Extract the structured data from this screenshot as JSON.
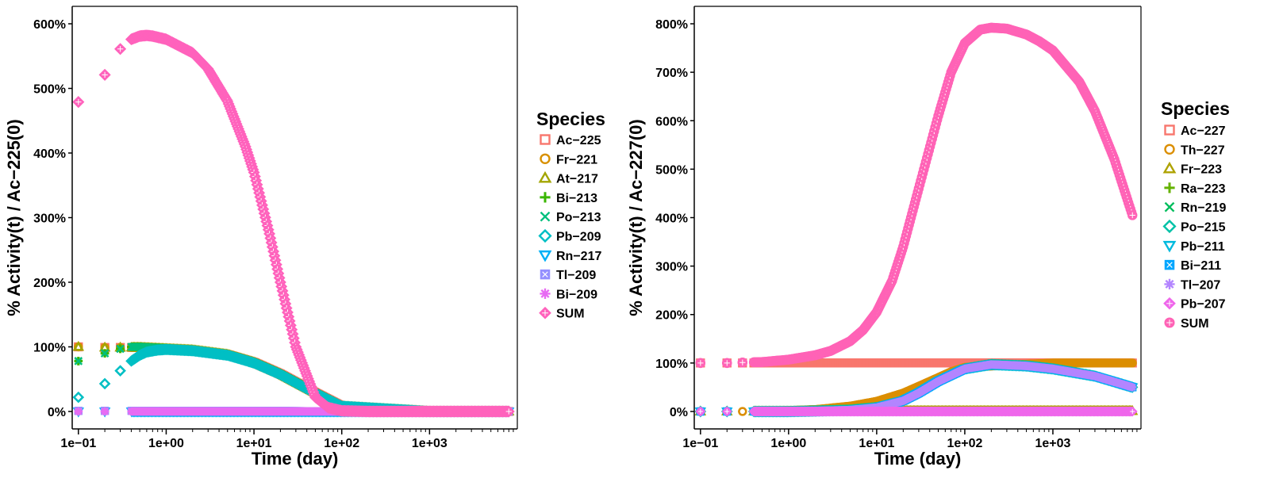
{
  "chart_data": [
    {
      "type": "scatter",
      "xlabel": "Time (day)",
      "ylabel": "% Activity(t) / Ac−225(0)",
      "xscale": "log10",
      "xlim": [
        0.1,
        8000
      ],
      "ylim": [
        0,
        600
      ],
      "x_ticks": [
        "1e−01",
        "1e+00",
        "1e+01",
        "1e+02",
        "1e+03"
      ],
      "y_ticks": [
        "0%",
        "100%",
        "200%",
        "300%",
        "400%",
        "500%",
        "600%"
      ],
      "legend_title": "Species",
      "legend_position": "right",
      "series": [
        {
          "name": "Ac−225",
          "color": "#F8766D",
          "shape": "square",
          "x": [
            0.1,
            0.2,
            0.3,
            0.5,
            1,
            2,
            5,
            10,
            20,
            50,
            100,
            1000,
            8000
          ],
          "values": [
            100,
            99,
            99,
            99,
            97,
            95,
            88,
            76,
            58,
            29,
            8,
            0,
            0
          ]
        },
        {
          "name": "Fr−221",
          "color": "#D89000",
          "shape": "circle",
          "x": [
            0.1,
            0.2,
            0.3,
            0.5,
            1,
            2,
            5,
            10,
            20,
            50,
            100,
            1000,
            8000
          ],
          "values": [
            100,
            99,
            99,
            99,
            97,
            95,
            88,
            76,
            58,
            29,
            8,
            0,
            0
          ]
        },
        {
          "name": "At−217",
          "color": "#A3A500",
          "shape": "triangle",
          "x": [
            0.1,
            0.2,
            0.3,
            0.5,
            1,
            2,
            5,
            10,
            20,
            50,
            100,
            1000,
            8000
          ],
          "values": [
            100,
            99,
            99,
            99,
            97,
            95,
            88,
            76,
            58,
            29,
            8,
            0,
            0
          ]
        },
        {
          "name": "Bi−213",
          "color": "#39B600",
          "shape": "plus",
          "x": [
            0.1,
            0.2,
            0.3,
            0.4,
            0.5,
            1,
            2,
            5,
            10,
            20,
            50,
            100,
            1000,
            8000
          ],
          "values": [
            78,
            90,
            97,
            100,
            100,
            98,
            95,
            88,
            76,
            58,
            29,
            8,
            0,
            0
          ]
        },
        {
          "name": "Po−213",
          "color": "#00BF7D",
          "shape": "cross",
          "x": [
            0.1,
            0.2,
            0.3,
            0.4,
            0.5,
            1,
            2,
            5,
            10,
            20,
            50,
            100,
            1000,
            8000
          ],
          "values": [
            78,
            90,
            97,
            100,
            100,
            98,
            95,
            88,
            76,
            58,
            29,
            8,
            0,
            0
          ]
        },
        {
          "name": "Pb−209",
          "color": "#00BFC4",
          "shape": "diamond",
          "x": [
            0.1,
            0.2,
            0.3,
            0.4,
            0.5,
            0.6,
            0.8,
            1,
            2,
            5,
            10,
            20,
            50,
            100,
            1000,
            8000
          ],
          "values": [
            22,
            43,
            63,
            78,
            87,
            92,
            95,
            96,
            94,
            87,
            75,
            57,
            28,
            8,
            0,
            0
          ]
        },
        {
          "name": "Rn−217",
          "color": "#00B0F6",
          "shape": "triangle-down",
          "x": [
            0.1,
            0.2,
            0.5,
            1,
            10,
            100,
            1000,
            8000
          ],
          "values": [
            0,
            0,
            0,
            0,
            0,
            0,
            0,
            0
          ]
        },
        {
          "name": "Tl−209",
          "color": "#9590FF",
          "shape": "square-x",
          "x": [
            0.1,
            0.2,
            0.5,
            1,
            10,
            100,
            1000,
            8000
          ],
          "values": [
            1,
            1,
            1,
            1,
            1,
            0,
            0,
            0
          ]
        },
        {
          "name": "Bi−209",
          "color": "#E76BF3",
          "shape": "asterisk",
          "x": [
            0.1,
            0.2,
            0.5,
            1,
            10,
            100,
            1000,
            8000
          ],
          "values": [
            0,
            0,
            0,
            0,
            0,
            0,
            0,
            0
          ]
        },
        {
          "name": "SUM",
          "color": "#FF62BC",
          "shape": "diamond-plus",
          "x": [
            0.1,
            0.2,
            0.3,
            0.4,
            0.5,
            0.6,
            0.7,
            1,
            2,
            3,
            5,
            8,
            10,
            15,
            20,
            30,
            50,
            70,
            100,
            200,
            1000,
            8000
          ],
          "values": [
            479,
            521,
            561,
            576,
            581,
            582,
            581,
            576,
            555,
            530,
            480,
            410,
            370,
            275,
            200,
            100,
            22,
            6,
            1,
            0,
            0,
            0
          ]
        }
      ]
    },
    {
      "type": "scatter",
      "xlabel": "Time (day)",
      "ylabel": "% Activity(t) / Ac−227(0)",
      "xscale": "log10",
      "xlim": [
        0.1,
        8000
      ],
      "ylim": [
        0,
        800
      ],
      "x_ticks": [
        "1e−01",
        "1e+00",
        "1e+01",
        "1e+02",
        "1e+03"
      ],
      "y_ticks": [
        "0%",
        "100%",
        "200%",
        "300%",
        "400%",
        "500%",
        "600%",
        "700%",
        "800%"
      ],
      "legend_title": "Species",
      "legend_position": "right",
      "series": [
        {
          "name": "Ac−227",
          "color": "#F8766D",
          "shape": "square",
          "x": [
            0.1,
            0.2,
            0.3,
            0.5,
            1,
            10,
            100,
            1000,
            8000
          ],
          "values": [
            100,
            100,
            100,
            100,
            100,
            100,
            100,
            100,
            100
          ]
        },
        {
          "name": "Th−227",
          "color": "#DB8E00",
          "shape": "circle",
          "x": [
            0.1,
            0.3,
            1,
            2,
            5,
            10,
            20,
            30,
            50,
            70,
            100,
            1000,
            8000
          ],
          "values": [
            0,
            0,
            2,
            4,
            11,
            21,
            38,
            52,
            70,
            82,
            91,
            100,
            100
          ]
        },
        {
          "name": "Fr−223",
          "color": "#AEA200",
          "shape": "triangle",
          "x": [
            0.1,
            0.2,
            0.5,
            1,
            10,
            100,
            1000,
            8000
          ],
          "values": [
            0,
            0,
            0,
            0,
            1,
            1,
            1,
            1
          ]
        },
        {
          "name": "Ra−223",
          "color": "#64B200",
          "shape": "plus",
          "x": [
            0.1,
            0.2,
            0.5,
            1,
            2,
            5,
            10,
            20,
            30,
            50,
            100,
            200,
            500,
            1000,
            3000,
            8000
          ],
          "values": [
            0,
            0,
            0,
            0,
            1,
            3,
            8,
            22,
            38,
            62,
            88,
            97,
            94,
            88,
            73,
            50
          ]
        },
        {
          "name": "Rn−219",
          "color": "#00BD5C",
          "shape": "cross",
          "x": [
            0.1,
            0.2,
            0.5,
            1,
            2,
            5,
            10,
            20,
            30,
            50,
            100,
            200,
            500,
            1000,
            3000,
            8000
          ],
          "values": [
            0,
            0,
            0,
            0,
            1,
            3,
            8,
            22,
            38,
            62,
            88,
            97,
            94,
            88,
            73,
            50
          ]
        },
        {
          "name": "Po−215",
          "color": "#00C1A7",
          "shape": "diamond",
          "x": [
            0.1,
            0.2,
            0.5,
            1,
            2,
            5,
            10,
            20,
            30,
            50,
            100,
            200,
            500,
            1000,
            3000,
            8000
          ],
          "values": [
            0,
            0,
            0,
            0,
            1,
            3,
            8,
            22,
            38,
            62,
            88,
            97,
            94,
            88,
            73,
            50
          ]
        },
        {
          "name": "Pb−211",
          "color": "#00BADE",
          "shape": "triangle-down",
          "x": [
            0.1,
            0.2,
            0.5,
            1,
            2,
            5,
            10,
            20,
            30,
            50,
            100,
            200,
            500,
            1000,
            3000,
            8000
          ],
          "values": [
            0,
            0,
            0,
            0,
            1,
            3,
            8,
            22,
            38,
            62,
            88,
            97,
            94,
            88,
            73,
            50
          ]
        },
        {
          "name": "Bi−211",
          "color": "#00A6FF",
          "shape": "square-x",
          "x": [
            0.1,
            0.2,
            0.5,
            1,
            2,
            5,
            10,
            20,
            30,
            50,
            100,
            200,
            500,
            1000,
            3000,
            8000
          ],
          "values": [
            0,
            0,
            0,
            0,
            1,
            3,
            8,
            22,
            38,
            62,
            88,
            97,
            94,
            88,
            73,
            50
          ]
        },
        {
          "name": "Tl−207",
          "color": "#B385FF",
          "shape": "asterisk",
          "x": [
            0.1,
            0.2,
            0.5,
            1,
            2,
            5,
            10,
            20,
            30,
            50,
            100,
            200,
            500,
            1000,
            3000,
            8000
          ],
          "values": [
            0,
            0,
            0,
            0,
            1,
            3,
            8,
            22,
            38,
            62,
            88,
            97,
            94,
            88,
            73,
            50
          ]
        },
        {
          "name": "Pb−207",
          "color": "#EF67EB",
          "shape": "diamond-plus",
          "x": [
            0.1,
            0.2,
            0.5,
            1,
            10,
            100,
            1000,
            8000
          ],
          "values": [
            0,
            0,
            0,
            0,
            0,
            0,
            0,
            0
          ]
        },
        {
          "name": "SUM",
          "color": "#FF63B6",
          "shape": "circle-plus",
          "x": [
            0.1,
            0.2,
            0.3,
            0.5,
            1,
            2,
            3,
            5,
            7,
            10,
            15,
            20,
            30,
            50,
            70,
            100,
            150,
            200,
            300,
            500,
            700,
            1000,
            2000,
            3000,
            5000,
            8000
          ],
          "values": [
            100,
            100,
            101,
            102,
            107,
            116,
            125,
            145,
            168,
            205,
            270,
            340,
            460,
            610,
            700,
            760,
            788,
            792,
            790,
            778,
            764,
            745,
            680,
            620,
            520,
            405
          ]
        }
      ]
    }
  ]
}
